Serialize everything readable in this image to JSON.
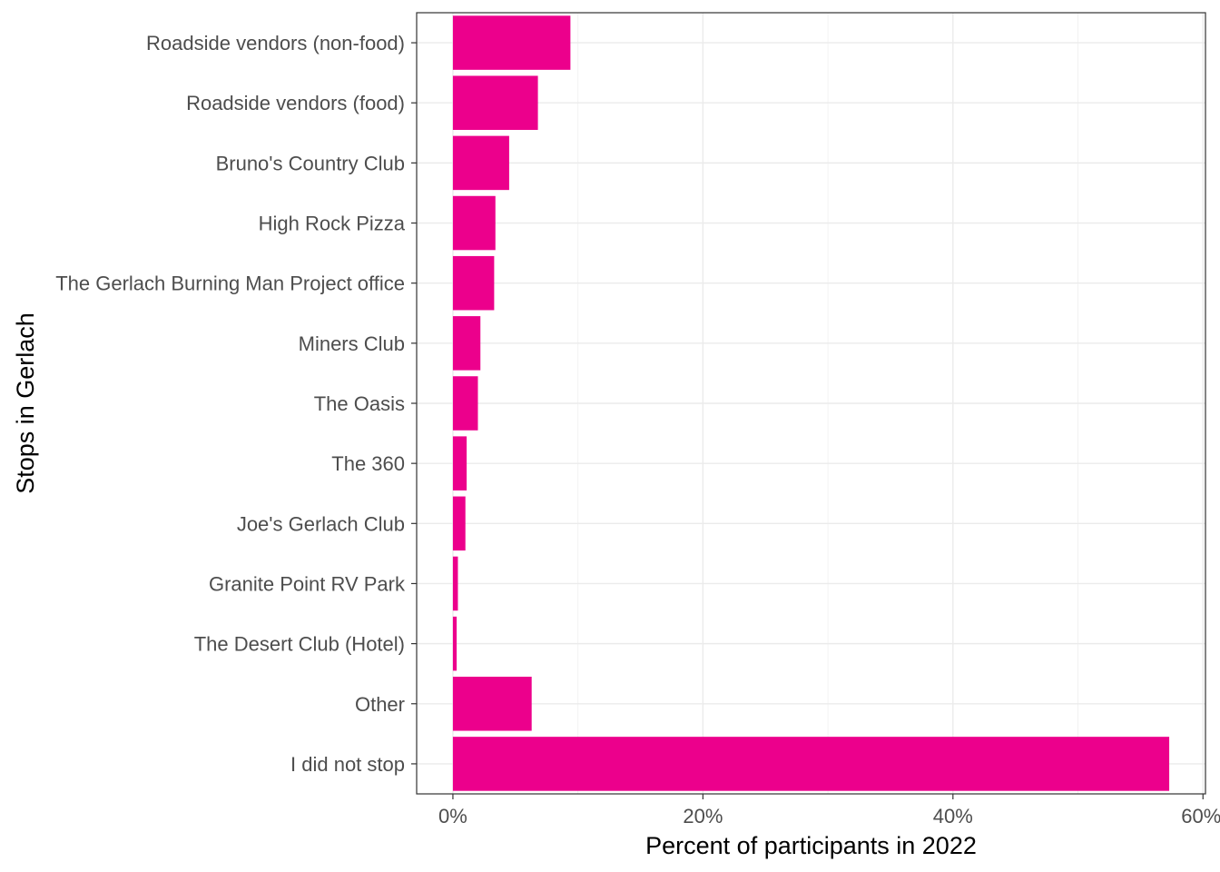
{
  "chart_data": {
    "type": "bar",
    "orientation": "horizontal",
    "title": "",
    "xlabel": "Percent of participants in 2022",
    "ylabel": "Stops in Gerlach",
    "categories": [
      "Roadside vendors (non-food)",
      "Roadside vendors (food)",
      "Bruno's Country Club",
      "High Rock Pizza",
      "The Gerlach Burning Man Project office",
      "Miners Club",
      "The Oasis",
      "The 360",
      "Joe's Gerlach Club",
      "Granite Point RV Park",
      "The Desert Club (Hotel)",
      "Other",
      "I did not stop"
    ],
    "values": [
      9.4,
      6.8,
      4.5,
      3.4,
      3.3,
      2.2,
      2.0,
      1.1,
      1.0,
      0.4,
      0.3,
      6.3,
      57.3
    ],
    "xlim": [
      -2.9,
      60.2
    ],
    "xticks": [
      0,
      20,
      40,
      60
    ],
    "xtick_labels": [
      "0%",
      "20%",
      "40%",
      "60%"
    ],
    "grid": true,
    "bar_color": "#EC008C"
  }
}
